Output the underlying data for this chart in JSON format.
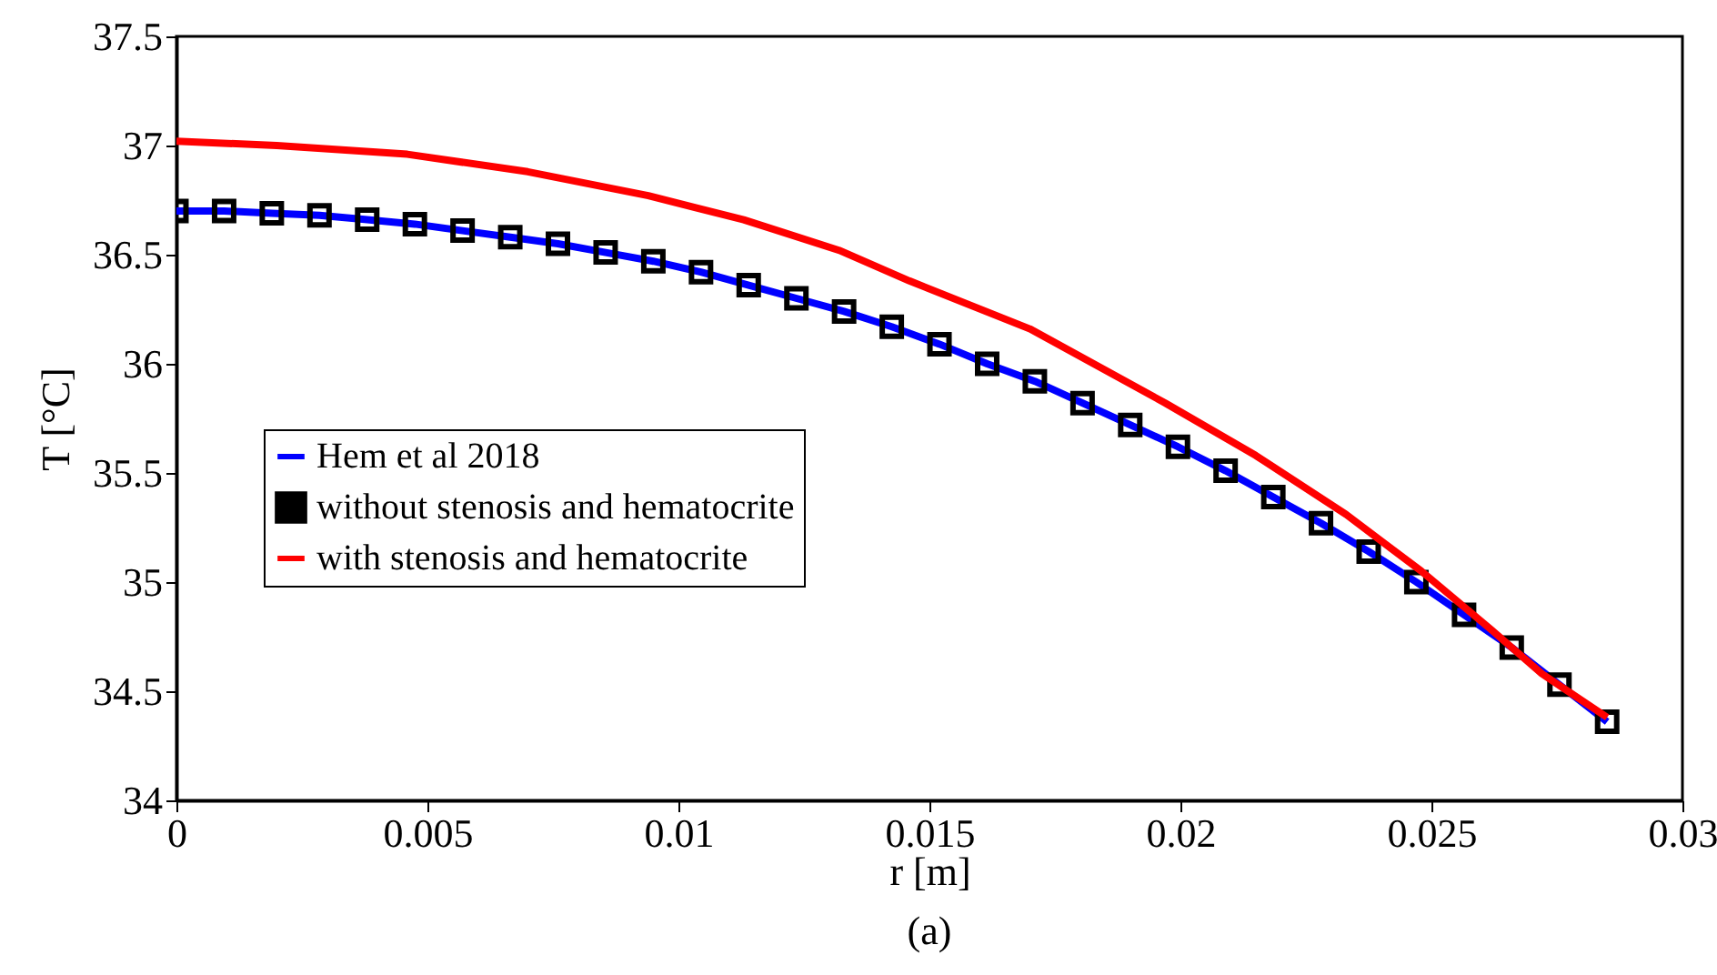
{
  "chart_data": {
    "type": "line",
    "xlabel": "r [m]",
    "ylabel": "T [°C]",
    "annotations": [
      "(a)"
    ],
    "xlim": [
      0,
      0.03
    ],
    "xticks": [
      0,
      0.005,
      0.01,
      0.015,
      0.02,
      0.025,
      0.03
    ],
    "ylim": [
      34,
      37.5
    ],
    "yticks": [
      34,
      34.5,
      35,
      35.5,
      36,
      36.5,
      37,
      37.5
    ],
    "grid": false,
    "legend": "left",
    "series": [
      {
        "name": "Hem et al 2018",
        "type": "line",
        "color": "#0000ff",
        "x": [
          0,
          0.00095,
          0.0019,
          0.00285,
          0.0038,
          0.00475,
          0.0057,
          0.00665,
          0.0076,
          0.00855,
          0.0095,
          0.01045,
          0.0114,
          0.01235,
          0.0133,
          0.01425,
          0.0152,
          0.01615,
          0.0171,
          0.01805,
          0.019,
          0.01995,
          0.0209,
          0.02185,
          0.0228,
          0.02375,
          0.0247,
          0.02565,
          0.0266,
          0.02755,
          0.0285
        ],
        "values": [
          36.7,
          36.7,
          36.69,
          36.68,
          36.66,
          36.64,
          36.61,
          36.58,
          36.55,
          36.51,
          36.47,
          36.42,
          36.36,
          36.3,
          36.24,
          36.17,
          36.09,
          36.0,
          35.92,
          35.82,
          35.72,
          35.62,
          35.51,
          35.39,
          35.27,
          35.14,
          35.0,
          34.85,
          34.7,
          34.53,
          34.36
        ]
      },
      {
        "name": "without stenosis and hematocrite",
        "type": "scatter",
        "marker": "square",
        "color": "#000000",
        "x": [
          0,
          0.00095,
          0.0019,
          0.00285,
          0.0038,
          0.00475,
          0.0057,
          0.00665,
          0.0076,
          0.00855,
          0.0095,
          0.01045,
          0.0114,
          0.01235,
          0.0133,
          0.01425,
          0.0152,
          0.01615,
          0.0171,
          0.01805,
          0.019,
          0.01995,
          0.0209,
          0.02185,
          0.0228,
          0.02375,
          0.0247,
          0.02565,
          0.0266,
          0.02755,
          0.0285
        ],
        "values": [
          36.7,
          36.7,
          36.69,
          36.68,
          36.66,
          36.64,
          36.61,
          36.58,
          36.55,
          36.51,
          36.47,
          36.42,
          36.36,
          36.3,
          36.24,
          36.17,
          36.09,
          36.0,
          35.92,
          35.82,
          35.72,
          35.62,
          35.51,
          35.39,
          35.27,
          35.14,
          35.0,
          34.85,
          34.7,
          34.53,
          34.36
        ]
      },
      {
        "name": "with stenosis and hematocrite",
        "type": "line",
        "color": "#ff0000",
        "x": [
          0,
          0.002,
          0.0046,
          0.007,
          0.0094,
          0.0113,
          0.0132,
          0.0146,
          0.017,
          0.0197,
          0.0215,
          0.0233,
          0.0248,
          0.0262,
          0.0272,
          0.0285
        ],
        "values": [
          37.02,
          37.0,
          36.96,
          36.88,
          36.77,
          36.66,
          36.52,
          36.38,
          36.16,
          35.82,
          35.58,
          35.31,
          35.05,
          34.78,
          34.58,
          34.38
        ]
      }
    ]
  }
}
